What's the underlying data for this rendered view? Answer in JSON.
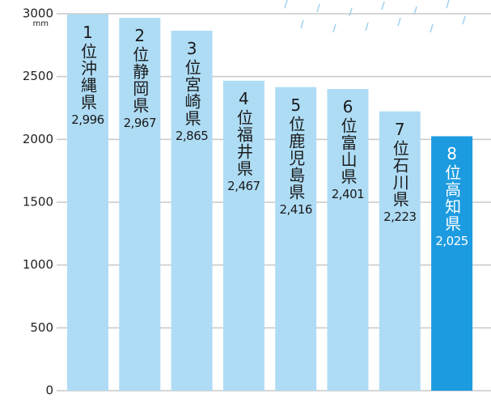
{
  "chart_data": {
    "type": "bar",
    "y_unit": "mm",
    "ranks": [
      "1位",
      "2位",
      "3位",
      "4位",
      "5位",
      "6位",
      "7位",
      "8位"
    ],
    "categories": [
      "沖縄県",
      "静岡県",
      "宮崎県",
      "福井県",
      "鹿児島県",
      "富山県",
      "石川県",
      "高知県"
    ],
    "values": [
      2996,
      2967,
      2865,
      2467,
      2416,
      2401,
      2223,
      2025
    ],
    "value_labels": [
      "2,996",
      "2,967",
      "2,865",
      "2,467",
      "2,416",
      "2,401",
      "2,223",
      "2,025"
    ],
    "colors": [
      "#aedcf5",
      "#aedcf5",
      "#aedcf5",
      "#aedcf5",
      "#aedcf5",
      "#aedcf5",
      "#aedcf5",
      "#1c9be0"
    ],
    "label_colors": [
      "#1a1a1a",
      "#1a1a1a",
      "#1a1a1a",
      "#1a1a1a",
      "#1a1a1a",
      "#1a1a1a",
      "#1a1a1a",
      "#ffffff"
    ],
    "ylim": [
      0,
      3000
    ],
    "yticks": [
      0,
      500,
      1000,
      1500,
      2000,
      2500,
      3000
    ],
    "grid": true
  }
}
